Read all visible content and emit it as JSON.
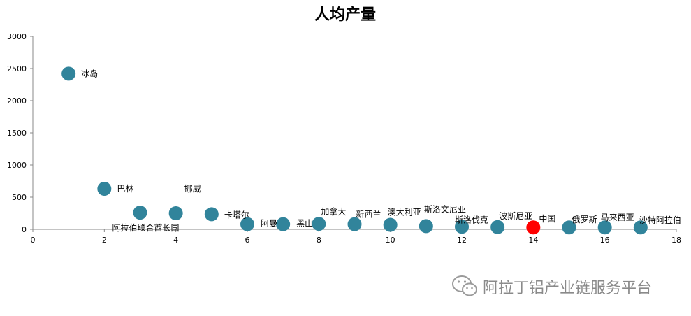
{
  "chart_data": {
    "type": "scatter",
    "title": "人均产量",
    "xlim": [
      0,
      18
    ],
    "ylim": [
      0,
      3000
    ],
    "x_ticks": [
      0,
      2,
      4,
      6,
      8,
      10,
      12,
      14,
      16,
      18
    ],
    "y_ticks": [
      0,
      500,
      1000,
      1500,
      2000,
      2500,
      3000
    ],
    "grid": false,
    "colors": {
      "default": "#31849b",
      "highlight": "#ff0000"
    },
    "points": [
      {
        "x": 1,
        "y": 2420,
        "label": "冰岛"
      },
      {
        "x": 2,
        "y": 630,
        "label": "巴林"
      },
      {
        "x": 3,
        "y": 260,
        "label": "阿拉伯联合酋长国"
      },
      {
        "x": 4,
        "y": 250,
        "label": "挪威"
      },
      {
        "x": 5,
        "y": 235,
        "label": "卡塔尔"
      },
      {
        "x": 6,
        "y": 80,
        "label": "阿曼"
      },
      {
        "x": 7,
        "y": 80,
        "label": "黑山"
      },
      {
        "x": 8,
        "y": 85,
        "label": "加拿大"
      },
      {
        "x": 9,
        "y": 80,
        "label": "新西兰"
      },
      {
        "x": 10,
        "y": 70,
        "label": "澳大利亚"
      },
      {
        "x": 11,
        "y": 50,
        "label": "斯洛文尼亚"
      },
      {
        "x": 12,
        "y": 40,
        "label": "斯洛伐克"
      },
      {
        "x": 13,
        "y": 35,
        "label": "波斯尼亚"
      },
      {
        "x": 14,
        "y": 30,
        "label": "中国",
        "highlight": true
      },
      {
        "x": 15,
        "y": 30,
        "label": "俄罗斯"
      },
      {
        "x": 16,
        "y": 30,
        "label": "马来西亚"
      },
      {
        "x": 17,
        "y": 30,
        "label": "沙特阿拉伯"
      }
    ]
  },
  "watermark": {
    "text": "阿拉丁铝产业链服务平台",
    "icon": "wechat-icon"
  }
}
